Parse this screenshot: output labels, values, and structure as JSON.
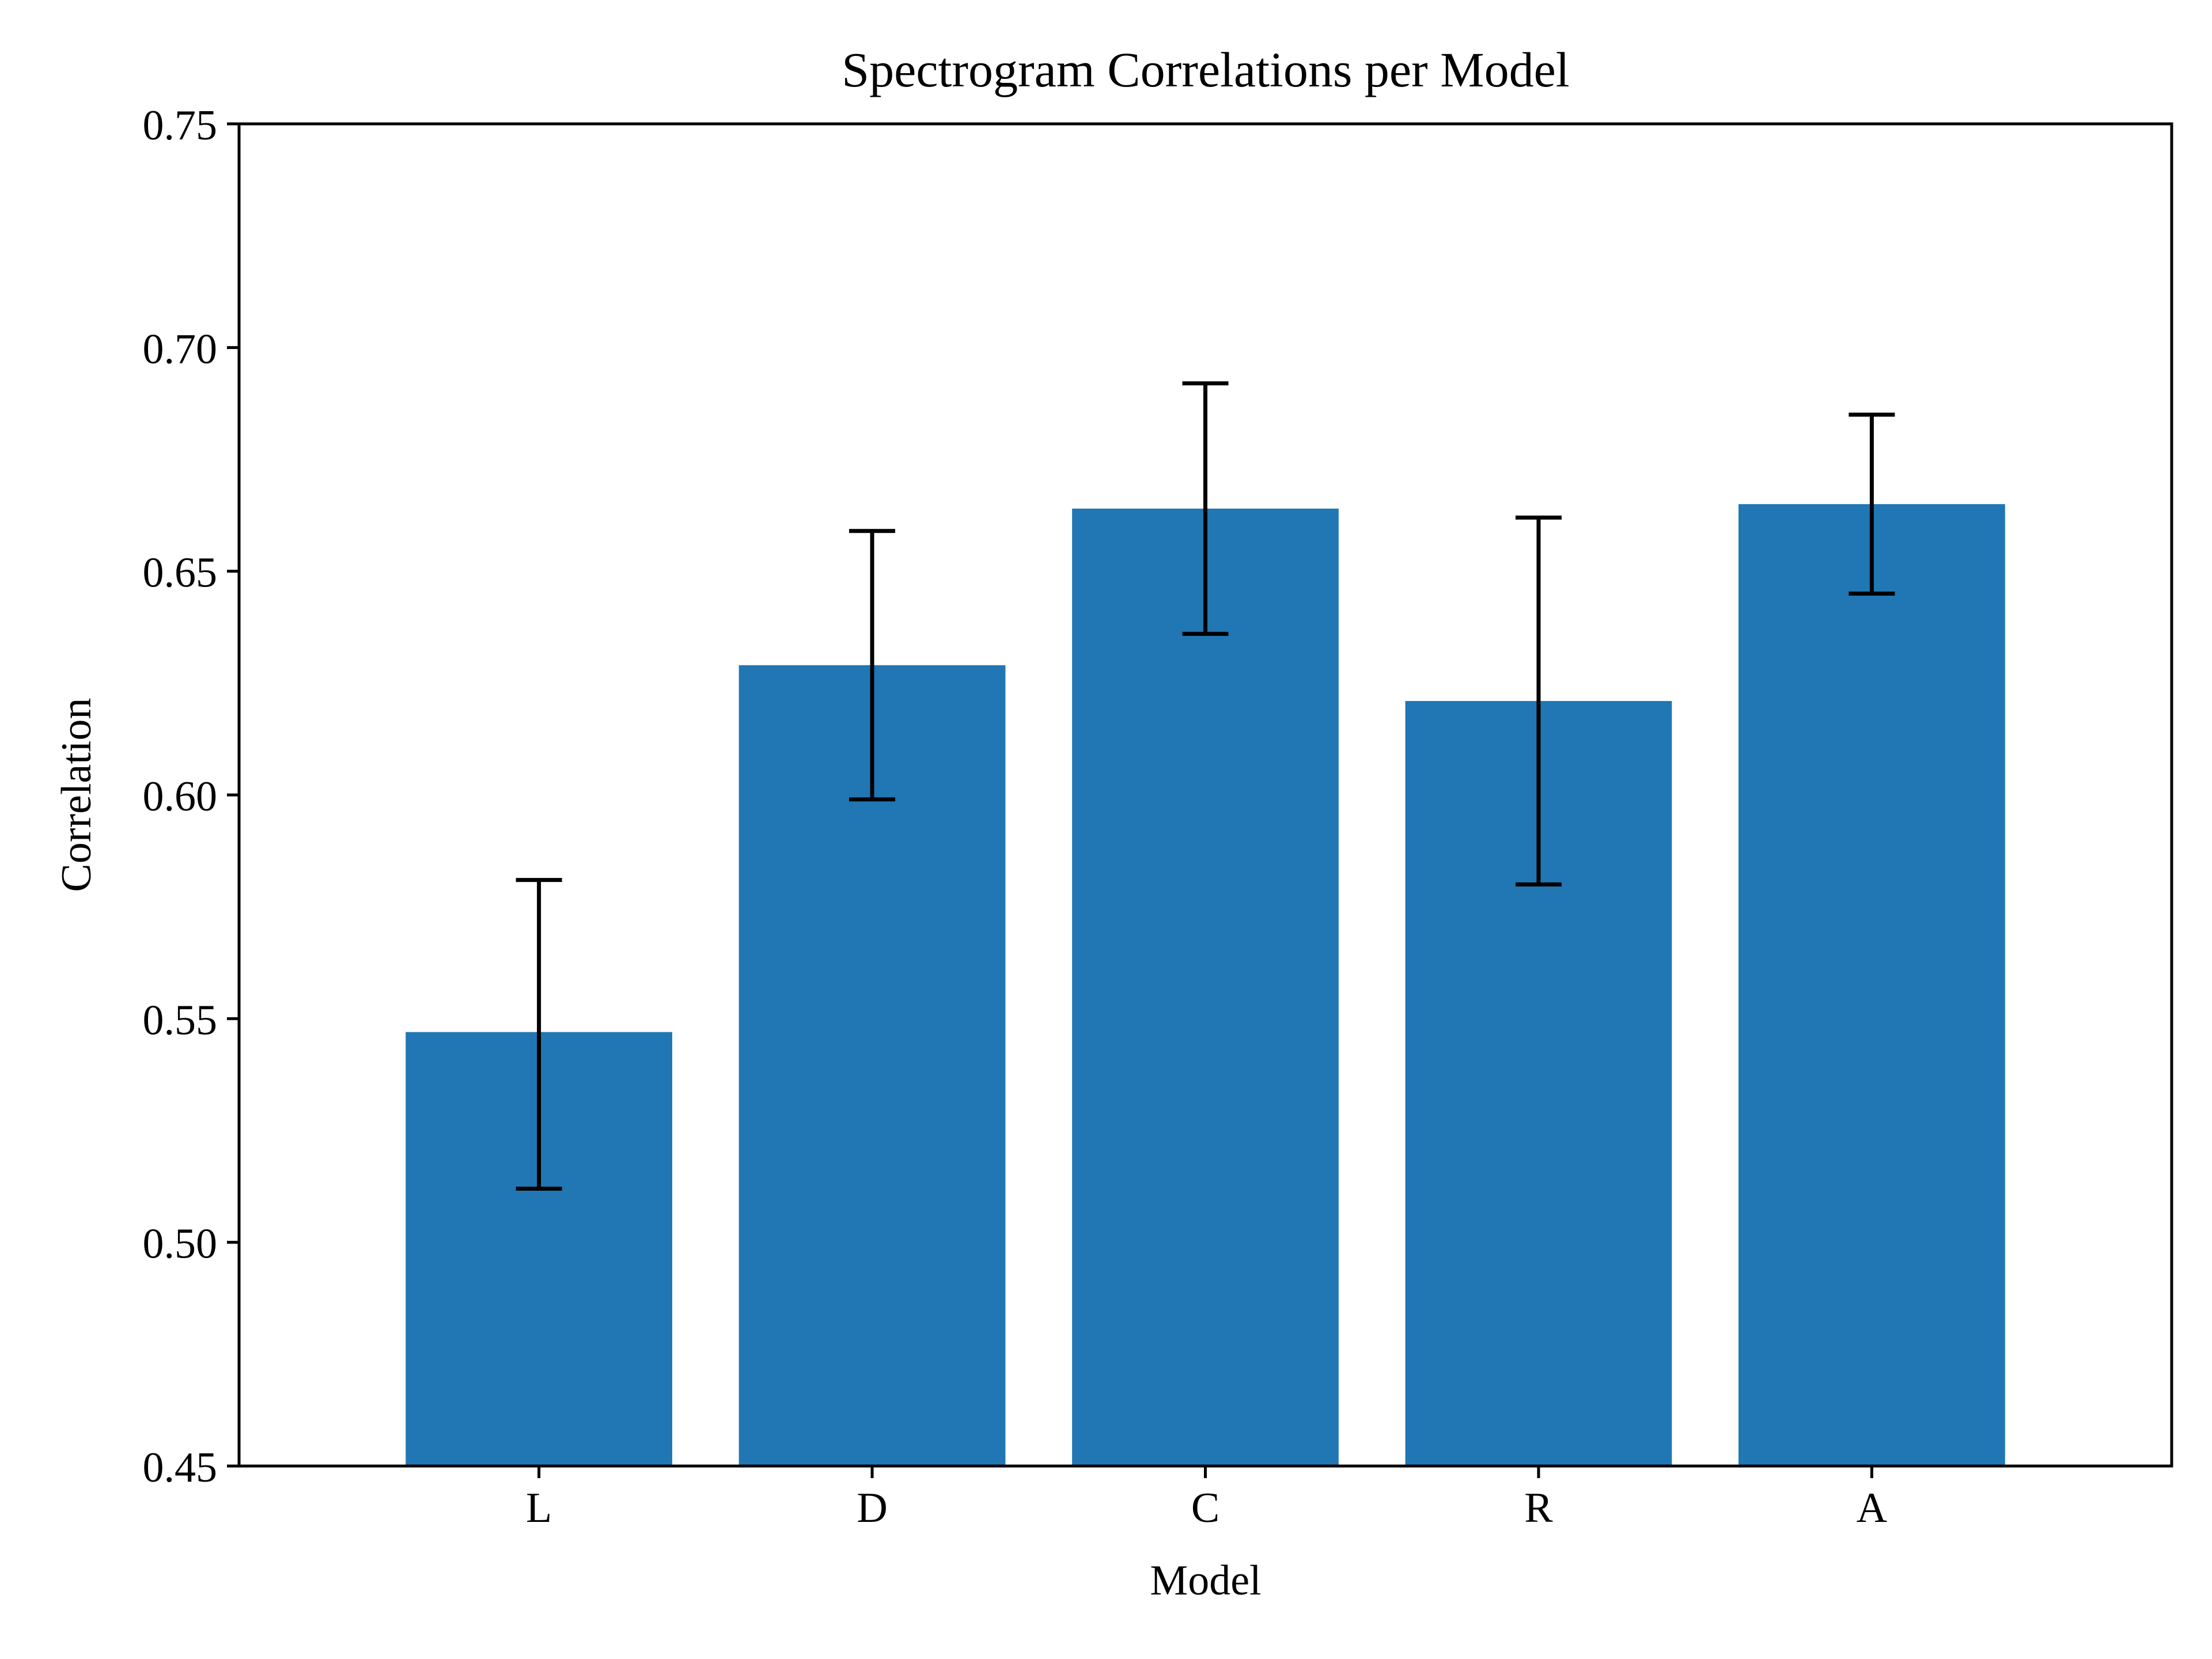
{
  "chart_data": {
    "type": "bar",
    "title": "Spectrogram Correlations per Model",
    "xlabel": "Model",
    "ylabel": "Correlation",
    "categories": [
      "L",
      "D",
      "C",
      "R",
      "A"
    ],
    "values": [
      0.547,
      0.629,
      0.664,
      0.621,
      0.665
    ],
    "error_low": [
      0.512,
      0.599,
      0.636,
      0.58,
      0.645
    ],
    "error_high": [
      0.581,
      0.659,
      0.692,
      0.662,
      0.685
    ],
    "ylim": [
      0.45,
      0.75
    ],
    "yticks": [
      "0.45",
      "0.50",
      "0.55",
      "0.60",
      "0.65",
      "0.70",
      "0.75"
    ],
    "grid": false,
    "legend": "none",
    "colors": {
      "bar": "#2077b4",
      "error_bar": "#000000",
      "axes": "#000000"
    }
  }
}
